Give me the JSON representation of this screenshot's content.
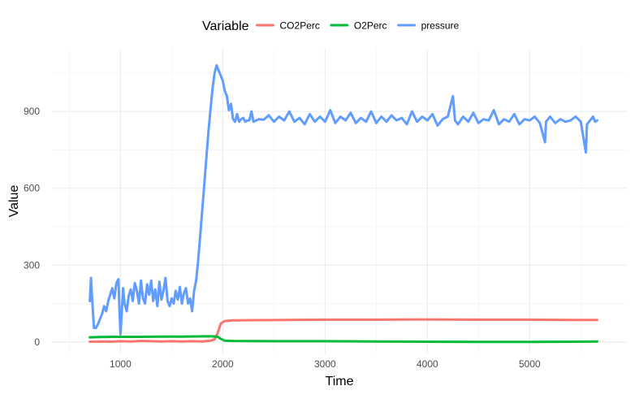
{
  "chart_data": {
    "type": "line",
    "title": "",
    "xlabel": "Time",
    "ylabel": "Value",
    "xlim": [
      330,
      5950
    ],
    "ylim": [
      -45,
      1145
    ],
    "x_major_ticks": [
      1000,
      2000,
      3000,
      4000,
      5000
    ],
    "y_major_ticks": [
      0,
      300,
      600,
      900
    ],
    "x_minor_ticks": [
      500,
      1500,
      2500,
      3500,
      4500,
      5500
    ],
    "y_minor_ticks": [
      150,
      450,
      750,
      1050
    ],
    "grid": true,
    "legend": {
      "position": "top",
      "title": "Variable",
      "entries": [
        "CO2Perc",
        "O2Perc",
        "pressure"
      ]
    },
    "series": [
      {
        "name": "CO2Perc",
        "color": "#F8766D",
        "points": [
          [
            700,
            1
          ],
          [
            800,
            2
          ],
          [
            900,
            1
          ],
          [
            1000,
            3
          ],
          [
            1100,
            2
          ],
          [
            1200,
            4
          ],
          [
            1300,
            3
          ],
          [
            1400,
            2
          ],
          [
            1500,
            3
          ],
          [
            1600,
            2
          ],
          [
            1700,
            3
          ],
          [
            1800,
            2
          ],
          [
            1880,
            5
          ],
          [
            1920,
            10
          ],
          [
            1950,
            35
          ],
          [
            1980,
            72
          ],
          [
            2020,
            82
          ],
          [
            2100,
            84
          ],
          [
            2300,
            85
          ],
          [
            2600,
            86
          ],
          [
            3000,
            87
          ],
          [
            3500,
            87
          ],
          [
            4000,
            88
          ],
          [
            4500,
            87
          ],
          [
            5000,
            87
          ],
          [
            5400,
            86
          ],
          [
            5660,
            86
          ]
        ]
      },
      {
        "name": "O2Perc",
        "color": "#00BA38",
        "points": [
          [
            700,
            18
          ],
          [
            800,
            19
          ],
          [
            900,
            20
          ],
          [
            1000,
            20
          ],
          [
            1200,
            20
          ],
          [
            1400,
            21
          ],
          [
            1600,
            21
          ],
          [
            1800,
            22
          ],
          [
            1900,
            22
          ],
          [
            1950,
            20
          ],
          [
            1980,
            12
          ],
          [
            2020,
            5
          ],
          [
            2100,
            4
          ],
          [
            2500,
            3
          ],
          [
            3000,
            3
          ],
          [
            3500,
            2
          ],
          [
            4000,
            1
          ],
          [
            4500,
            0
          ],
          [
            5000,
            0
          ],
          [
            5400,
            1
          ],
          [
            5660,
            2
          ]
        ]
      },
      {
        "name": "pressure",
        "color": "#619CFF",
        "points": [
          [
            700,
            160
          ],
          [
            712,
            250
          ],
          [
            720,
            190
          ],
          [
            740,
            55
          ],
          [
            760,
            55
          ],
          [
            780,
            70
          ],
          [
            800,
            90
          ],
          [
            820,
            110
          ],
          [
            840,
            140
          ],
          [
            860,
            120
          ],
          [
            880,
            160
          ],
          [
            900,
            185
          ],
          [
            920,
            210
          ],
          [
            940,
            170
          ],
          [
            960,
            230
          ],
          [
            980,
            245
          ],
          [
            990,
            130
          ],
          [
            1000,
            30
          ],
          [
            1010,
            100
          ],
          [
            1025,
            210
          ],
          [
            1040,
            150
          ],
          [
            1060,
            120
          ],
          [
            1080,
            180
          ],
          [
            1100,
            205
          ],
          [
            1120,
            160
          ],
          [
            1140,
            230
          ],
          [
            1160,
            200
          ],
          [
            1180,
            150
          ],
          [
            1200,
            240
          ],
          [
            1220,
            170
          ],
          [
            1240,
            150
          ],
          [
            1260,
            225
          ],
          [
            1280,
            185
          ],
          [
            1300,
            240
          ],
          [
            1320,
            160
          ],
          [
            1340,
            205
          ],
          [
            1360,
            140
          ],
          [
            1380,
            235
          ],
          [
            1400,
            165
          ],
          [
            1420,
            200
          ],
          [
            1440,
            250
          ],
          [
            1460,
            160
          ],
          [
            1480,
            140
          ],
          [
            1500,
            170
          ],
          [
            1520,
            150
          ],
          [
            1540,
            200
          ],
          [
            1560,
            165
          ],
          [
            1580,
            215
          ],
          [
            1600,
            150
          ],
          [
            1620,
            190
          ],
          [
            1640,
            210
          ],
          [
            1660,
            150
          ],
          [
            1680,
            170
          ],
          [
            1700,
            120
          ],
          [
            1720,
            200
          ],
          [
            1740,
            240
          ],
          [
            1760,
            320
          ],
          [
            1780,
            420
          ],
          [
            1800,
            520
          ],
          [
            1820,
            620
          ],
          [
            1840,
            720
          ],
          [
            1860,
            820
          ],
          [
            1880,
            910
          ],
          [
            1900,
            990
          ],
          [
            1920,
            1050
          ],
          [
            1940,
            1080
          ],
          [
            1960,
            1060
          ],
          [
            1980,
            1040
          ],
          [
            2000,
            1020
          ],
          [
            2020,
            980
          ],
          [
            2040,
            960
          ],
          [
            2060,
            905
          ],
          [
            2080,
            930
          ],
          [
            2100,
            870
          ],
          [
            2120,
            860
          ],
          [
            2140,
            890
          ],
          [
            2160,
            860
          ],
          [
            2180,
            870
          ],
          [
            2200,
            875
          ],
          [
            2220,
            860
          ],
          [
            2240,
            865
          ],
          [
            2260,
            865
          ],
          [
            2280,
            900
          ],
          [
            2300,
            860
          ],
          [
            2350,
            870
          ],
          [
            2400,
            868
          ],
          [
            2450,
            885
          ],
          [
            2500,
            860
          ],
          [
            2550,
            880
          ],
          [
            2600,
            865
          ],
          [
            2650,
            900
          ],
          [
            2700,
            860
          ],
          [
            2750,
            875
          ],
          [
            2800,
            850
          ],
          [
            2850,
            890
          ],
          [
            2900,
            860
          ],
          [
            2950,
            880
          ],
          [
            3000,
            860
          ],
          [
            3050,
            905
          ],
          [
            3100,
            855
          ],
          [
            3150,
            880
          ],
          [
            3200,
            865
          ],
          [
            3250,
            895
          ],
          [
            3300,
            855
          ],
          [
            3350,
            875
          ],
          [
            3400,
            860
          ],
          [
            3450,
            900
          ],
          [
            3500,
            855
          ],
          [
            3550,
            880
          ],
          [
            3600,
            860
          ],
          [
            3650,
            885
          ],
          [
            3700,
            865
          ],
          [
            3750,
            875
          ],
          [
            3800,
            850
          ],
          [
            3850,
            900
          ],
          [
            3900,
            860
          ],
          [
            3950,
            880
          ],
          [
            4000,
            865
          ],
          [
            4050,
            890
          ],
          [
            4100,
            845
          ],
          [
            4150,
            870
          ],
          [
            4200,
            880
          ],
          [
            4250,
            960
          ],
          [
            4270,
            865
          ],
          [
            4300,
            850
          ],
          [
            4350,
            880
          ],
          [
            4400,
            860
          ],
          [
            4450,
            895
          ],
          [
            4500,
            855
          ],
          [
            4550,
            870
          ],
          [
            4600,
            865
          ],
          [
            4650,
            905
          ],
          [
            4700,
            850
          ],
          [
            4750,
            870
          ],
          [
            4800,
            860
          ],
          [
            4850,
            890
          ],
          [
            4900,
            850
          ],
          [
            4950,
            870
          ],
          [
            5000,
            865
          ],
          [
            5050,
            880
          ],
          [
            5100,
            855
          ],
          [
            5150,
            780
          ],
          [
            5160,
            860
          ],
          [
            5200,
            880
          ],
          [
            5250,
            855
          ],
          [
            5300,
            870
          ],
          [
            5350,
            860
          ],
          [
            5400,
            865
          ],
          [
            5450,
            880
          ],
          [
            5500,
            860
          ],
          [
            5550,
            740
          ],
          [
            5560,
            850
          ],
          [
            5600,
            870
          ],
          [
            5620,
            880
          ],
          [
            5640,
            860
          ],
          [
            5660,
            865
          ]
        ]
      }
    ]
  }
}
